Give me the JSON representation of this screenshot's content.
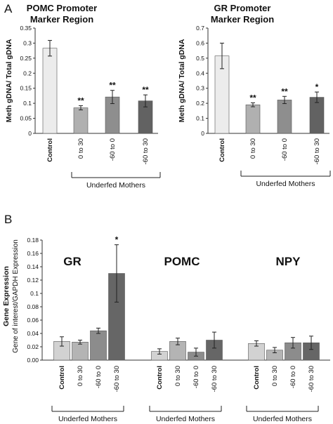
{
  "panel_labels": [
    "A",
    "B"
  ],
  "chart_data": [
    {
      "type": "bar",
      "title": "POMC Promoter Marker Region",
      "title_lines": [
        "POMC Promoter",
        "Marker  Region"
      ],
      "ylabel": "Meth gDNA/ Total gDNA",
      "ylim": [
        0,
        0.35
      ],
      "yticks": [
        "0",
        "0.05",
        "0.1",
        "0.15",
        "0.2",
        "0.25",
        "0.3",
        "0.35"
      ],
      "categories": [
        "Control",
        "0 to 30",
        "-60 to 0",
        "-60 to 30"
      ],
      "values": [
        0.283,
        0.085,
        0.121,
        0.108
      ],
      "errors": [
        0.026,
        0.007,
        0.022,
        0.02
      ],
      "significance": [
        "",
        "**",
        "**",
        "**"
      ],
      "bracket_label": "Underfed Mothers",
      "colors": [
        "#ececec",
        "#b0b0b0",
        "#8e8e8e",
        "#626262"
      ]
    },
    {
      "type": "bar",
      "title": "GR Promoter Marker Region",
      "title_lines": [
        "GR Promoter",
        "Marker  Region"
      ],
      "ylabel": "Meth gDNA/ Total gDNA",
      "ylim": [
        0,
        0.7
      ],
      "yticks": [
        "0",
        "0.1",
        "0.2",
        "0.3",
        "0.4",
        "0.5",
        "0.6",
        "0.7"
      ],
      "categories": [
        "Control",
        "0 to 30",
        "-60 to 0",
        "-60 to 30"
      ],
      "values": [
        0.515,
        0.19,
        0.222,
        0.24
      ],
      "errors": [
        0.085,
        0.013,
        0.024,
        0.035
      ],
      "significance": [
        "",
        "**",
        "**",
        "*"
      ],
      "bracket_label": "Underfed Mothers",
      "colors": [
        "#ececec",
        "#b0b0b0",
        "#8e8e8e",
        "#626262"
      ]
    },
    {
      "type": "bar",
      "ylabel": "Gene Expression",
      "ylabel_sub": "Gene of interest/GAPDH Expression",
      "ylim": [
        0,
        0.18
      ],
      "yticks": [
        "0.00",
        "0.02",
        "0.04",
        "0.06",
        "0.08",
        "0.1",
        "0.12",
        "0.14",
        "0.16",
        "0.18"
      ],
      "categories": [
        "Control",
        "0 to 30",
        "-60 to 0",
        "-60 to 30"
      ],
      "series": [
        {
          "name": "GR",
          "values": [
            0.028,
            0.027,
            0.044,
            0.13
          ],
          "errors": [
            0.007,
            0.003,
            0.004,
            0.043
          ],
          "significance": [
            "",
            "",
            "",
            "*"
          ]
        },
        {
          "name": "POMC",
          "values": [
            0.013,
            0.028,
            0.012,
            0.03
          ],
          "errors": [
            0.004,
            0.005,
            0.006,
            0.012
          ],
          "significance": [
            "",
            "",
            "",
            ""
          ]
        },
        {
          "name": "NPY",
          "values": [
            0.025,
            0.015,
            0.026,
            0.026
          ],
          "errors": [
            0.004,
            0.004,
            0.008,
            0.01
          ],
          "significance": [
            "",
            "",
            "",
            ""
          ]
        }
      ],
      "bracket_label": "Underfed Mothers",
      "colors": [
        "#d2d2d2",
        "#b4b4b4",
        "#8c8c8c",
        "#666666"
      ]
    }
  ]
}
